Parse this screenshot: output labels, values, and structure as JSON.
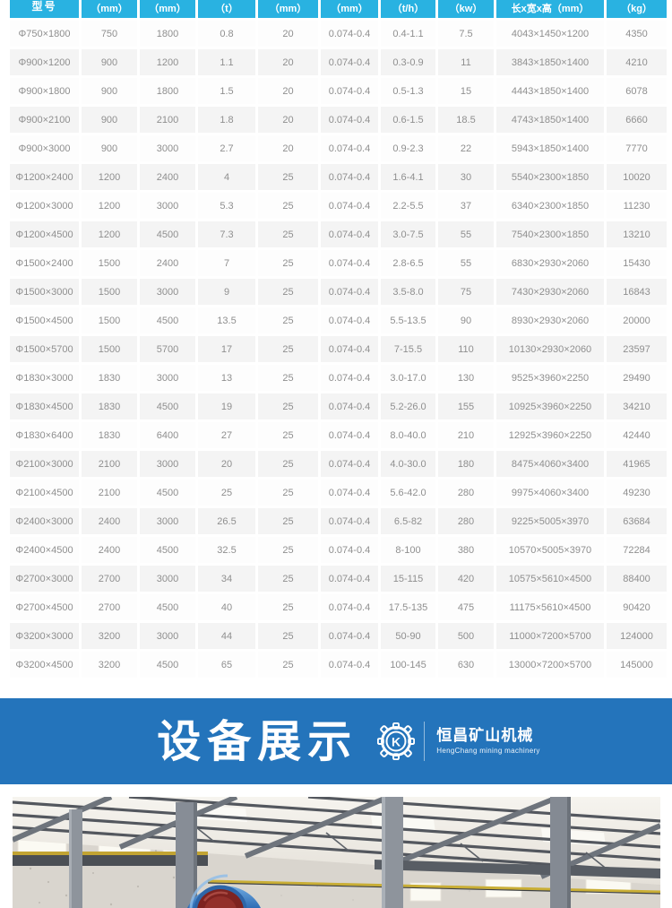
{
  "table": {
    "headers": [
      "型号",
      "（mm）",
      "（mm）",
      "（t）",
      "（mm）",
      "（mm）",
      "（t/h）",
      "（kw）",
      "长x宽x高（mm）",
      "（kg）"
    ],
    "header_bg": "#29b2e1",
    "row_alt_bg": "#f4f4f4",
    "text_color": "#8f8f8f",
    "rows": [
      [
        "Φ750×1800",
        "750",
        "1800",
        "0.8",
        "20",
        "0.074-0.4",
        "0.4-1.1",
        "7.5",
        "4043×1450×1200",
        "4350"
      ],
      [
        "Φ900×1200",
        "900",
        "1200",
        "1.1",
        "20",
        "0.074-0.4",
        "0.3-0.9",
        "11",
        "3843×1850×1400",
        "4210"
      ],
      [
        "Φ900×1800",
        "900",
        "1800",
        "1.5",
        "20",
        "0.074-0.4",
        "0.5-1.3",
        "15",
        "4443×1850×1400",
        "6078"
      ],
      [
        "Φ900×2100",
        "900",
        "2100",
        "1.8",
        "20",
        "0.074-0.4",
        "0.6-1.5",
        "18.5",
        "4743×1850×1400",
        "6660"
      ],
      [
        "Φ900×3000",
        "900",
        "3000",
        "2.7",
        "20",
        "0.074-0.4",
        "0.9-2.3",
        "22",
        "5943×1850×1400",
        "7770"
      ],
      [
        "Φ1200×2400",
        "1200",
        "2400",
        "4",
        "25",
        "0.074-0.4",
        "1.6-4.1",
        "30",
        "5540×2300×1850",
        "10020"
      ],
      [
        "Φ1200×3000",
        "1200",
        "3000",
        "5.3",
        "25",
        "0.074-0.4",
        "2.2-5.5",
        "37",
        "6340×2300×1850",
        "11230"
      ],
      [
        "Φ1200×4500",
        "1200",
        "4500",
        "7.3",
        "25",
        "0.074-0.4",
        "3.0-7.5",
        "55",
        "7540×2300×1850",
        "13210"
      ],
      [
        "Φ1500×2400",
        "1500",
        "2400",
        "7",
        "25",
        "0.074-0.4",
        "2.8-6.5",
        "55",
        "6830×2930×2060",
        "15430"
      ],
      [
        "Φ1500×3000",
        "1500",
        "3000",
        "9",
        "25",
        "0.074-0.4",
        "3.5-8.0",
        "75",
        "7430×2930×2060",
        "16843"
      ],
      [
        "Φ1500×4500",
        "1500",
        "4500",
        "13.5",
        "25",
        "0.074-0.4",
        "5.5-13.5",
        "90",
        "8930×2930×2060",
        "20000"
      ],
      [
        "Φ1500×5700",
        "1500",
        "5700",
        "17",
        "25",
        "0.074-0.4",
        "7-15.5",
        "110",
        "10130×2930×2060",
        "23597"
      ],
      [
        "Φ1830×3000",
        "1830",
        "3000",
        "13",
        "25",
        "0.074-0.4",
        "3.0-17.0",
        "130",
        "9525×3960×2250",
        "29490"
      ],
      [
        "Φ1830×4500",
        "1830",
        "4500",
        "19",
        "25",
        "0.074-0.4",
        "5.2-26.0",
        "155",
        "10925×3960×2250",
        "34210"
      ],
      [
        "Φ1830×6400",
        "1830",
        "6400",
        "27",
        "25",
        "0.074-0.4",
        "8.0-40.0",
        "210",
        "12925×3960×2250",
        "42440"
      ],
      [
        "Φ2100×3000",
        "2100",
        "3000",
        "20",
        "25",
        "0.074-0.4",
        "4.0-30.0",
        "180",
        "8475×4060×3400",
        "41965"
      ],
      [
        "Φ2100×4500",
        "2100",
        "4500",
        "25",
        "25",
        "0.074-0.4",
        "5.6-42.0",
        "280",
        "9975×4060×3400",
        "49230"
      ],
      [
        "Φ2400×3000",
        "2400",
        "3000",
        "26.5",
        "25",
        "0.074-0.4",
        "6.5-82",
        "280",
        "9225×5005×3970",
        "63684"
      ],
      [
        "Φ2400×4500",
        "2400",
        "4500",
        "32.5",
        "25",
        "0.074-0.4",
        "8-100",
        "380",
        "10570×5005×3970",
        "72284"
      ],
      [
        "Φ2700×3000",
        "2700",
        "3000",
        "34",
        "25",
        "0.074-0.4",
        "15-115",
        "420",
        "10575×5610×4500",
        "88400"
      ],
      [
        "Φ2700×4500",
        "2700",
        "4500",
        "40",
        "25",
        "0.074-0.4",
        "17.5-135",
        "475",
        "11175×5610×4500",
        "90420"
      ],
      [
        "Φ3200×3000",
        "3200",
        "3000",
        "44",
        "25",
        "0.074-0.4",
        "50-90",
        "500",
        "11000×7200×5700",
        "124000"
      ],
      [
        "Φ3200×4500",
        "3200",
        "4500",
        "65",
        "25",
        "0.074-0.4",
        "100-145",
        "630",
        "13000×7200×5700",
        "145000"
      ]
    ]
  },
  "banner": {
    "title": "设备展示",
    "logo_letter": "K",
    "brand_cn": "恒昌矿山机械",
    "brand_en": "HengChang mining machinery",
    "bg": "#2474bb"
  },
  "photo": {
    "alt": "车间内部：钢结构厂房与蓝色磨机设备"
  }
}
